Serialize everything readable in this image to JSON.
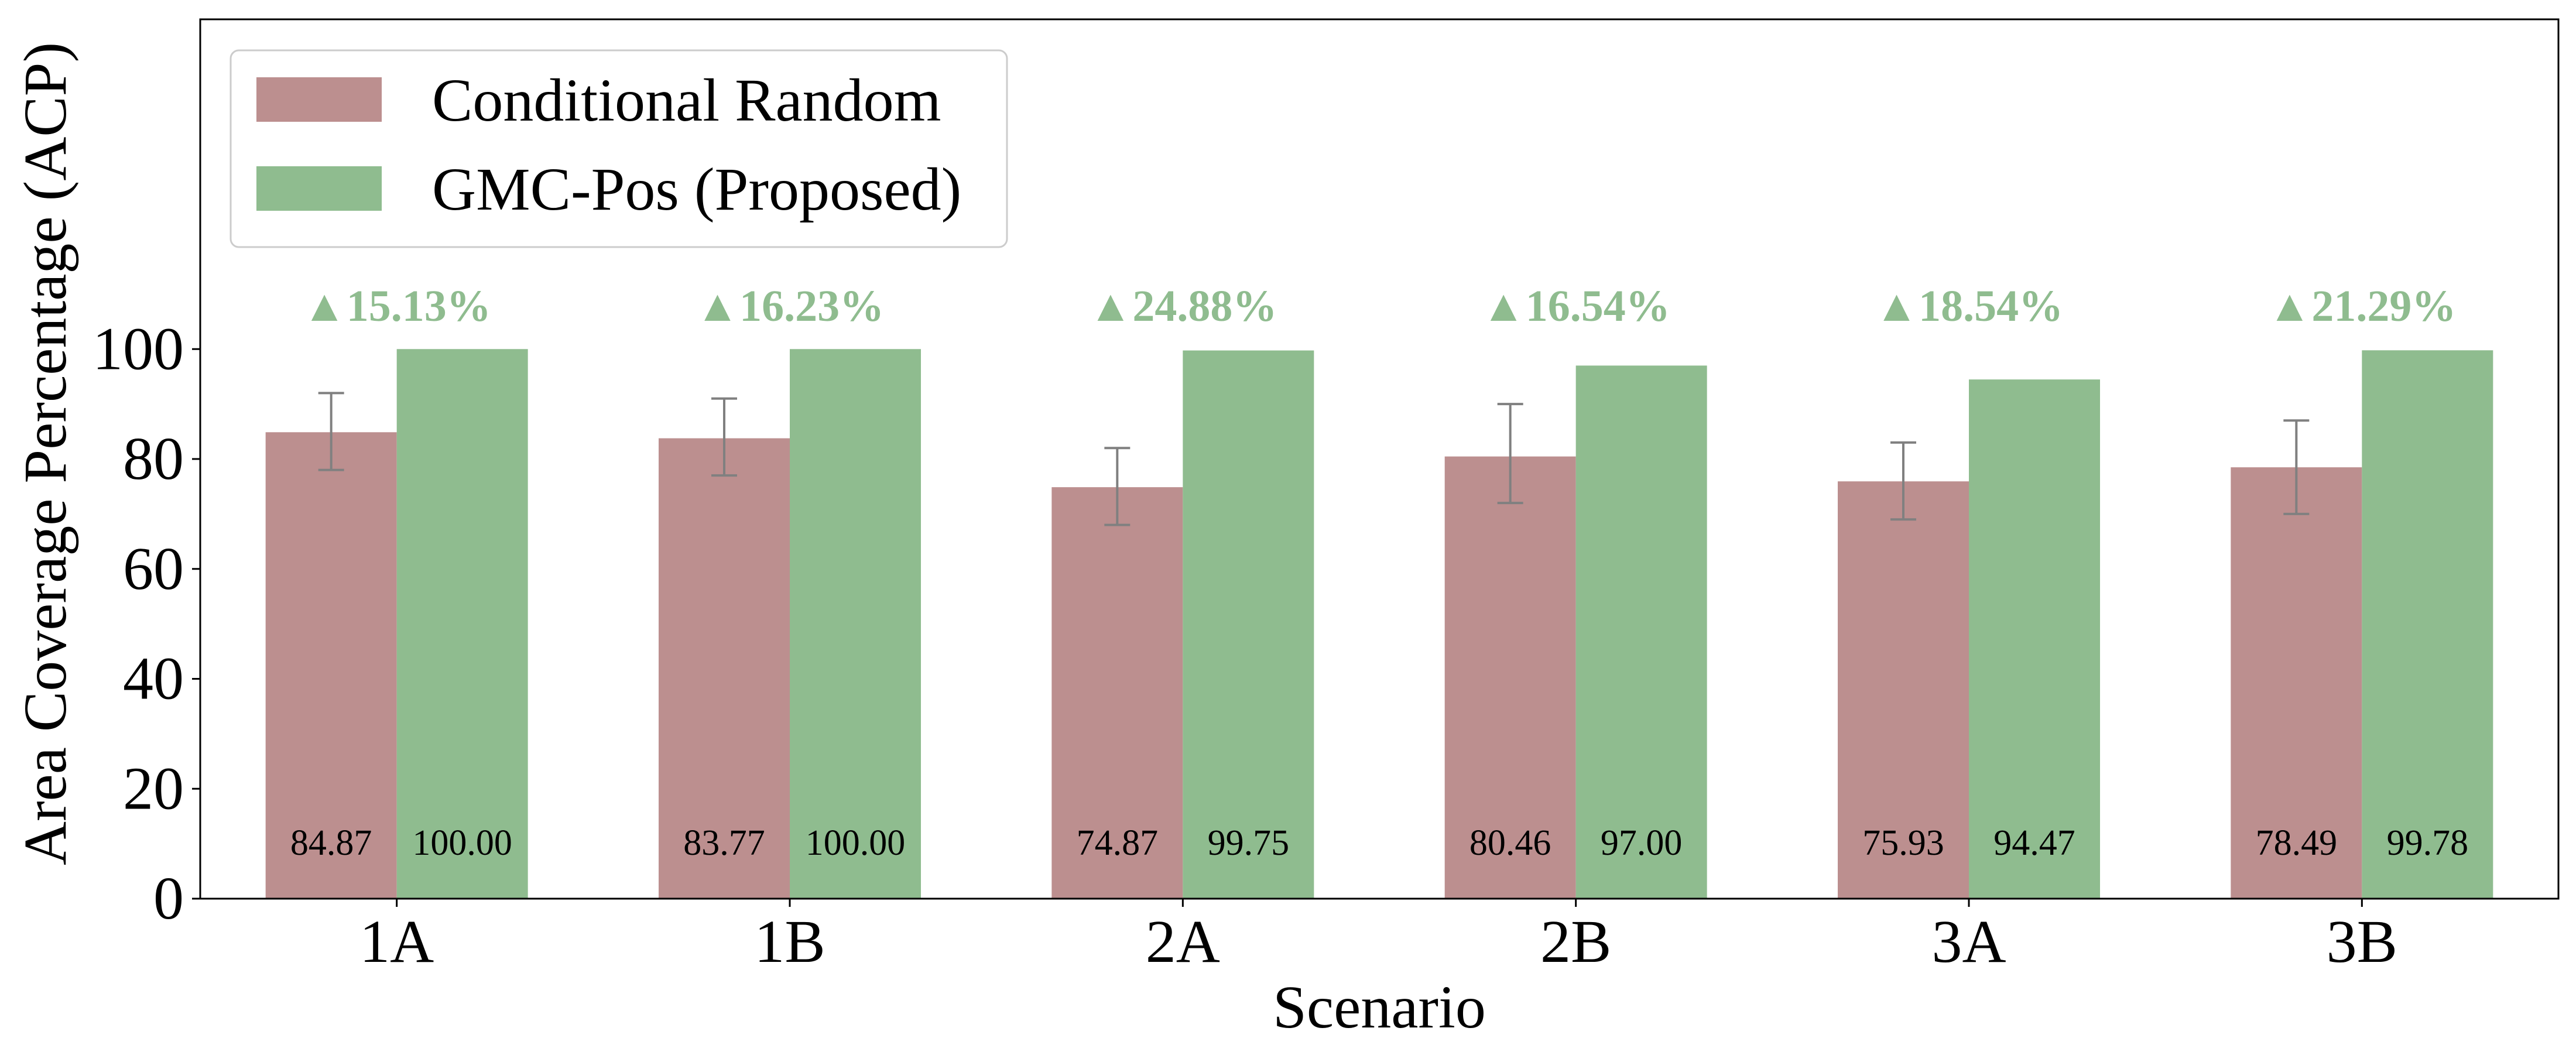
{
  "chart_data": {
    "type": "bar",
    "xlabel": "Scenario",
    "ylabel": "Area Coverage Percentage (ACP)",
    "categories": [
      "1A",
      "1B",
      "2A",
      "2B",
      "3A",
      "3B"
    ],
    "series": [
      {
        "name": "Conditional Random",
        "color": "#bc8f8f",
        "values": [
          84.87,
          83.77,
          74.87,
          80.46,
          75.93,
          78.49
        ],
        "value_labels": [
          "84.87",
          "83.77",
          "74.87",
          "80.46",
          "75.93",
          "78.49"
        ],
        "error_low": [
          78,
          77,
          68,
          72,
          69,
          70
        ],
        "error_high": [
          92,
          91,
          82,
          90,
          83,
          87
        ]
      },
      {
        "name": "GMC-Pos (Proposed)",
        "color": "#8fbc8f",
        "values": [
          100.0,
          100.0,
          99.75,
          97.0,
          94.47,
          99.78
        ],
        "value_labels": [
          "100.00",
          "100.00",
          "99.75",
          "97.00",
          "94.47",
          "99.78"
        ]
      }
    ],
    "improvement_labels": [
      "▲15.13%",
      "▲16.23%",
      "▲24.88%",
      "▲16.54%",
      "▲18.54%",
      "▲21.29%"
    ],
    "improvement_color": "#8fbc8f",
    "yticks": [
      "0",
      "20",
      "40",
      "60",
      "80",
      "100"
    ],
    "ylim": [
      0,
      160
    ],
    "legend_position": "upper-left",
    "grid": false,
    "error_bar_color": "#808080"
  }
}
